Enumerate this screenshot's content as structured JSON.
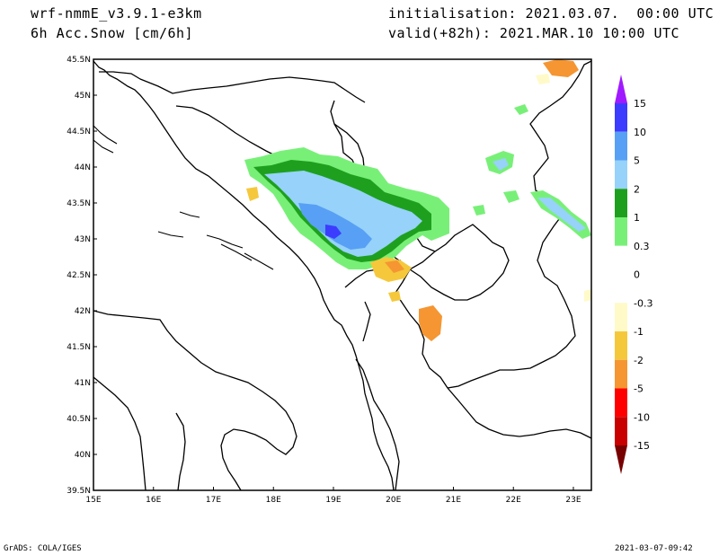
{
  "header": {
    "model": "wrf-nmmE_v3.9.1-e3km",
    "field": "6h Acc.Snow [cm/6h]",
    "init": "initialisation: 2021.03.07.  00:00 UTC",
    "valid": "valid(+82h): 2021.MAR.10 10:00 UTC"
  },
  "footer": {
    "left": "GrADS: COLA/IGES",
    "right": "2021-03-07-09:42"
  },
  "map": {
    "lon_labels": [
      "15E",
      "16E",
      "17E",
      "18E",
      "19E",
      "20E",
      "21E",
      "22E",
      "23E"
    ],
    "lat_labels": [
      "45.5N",
      "45N",
      "44.5N",
      "44N",
      "43.5N",
      "43N",
      "42.5N",
      "42N",
      "41.5N",
      "41N",
      "40.5N",
      "40N",
      "39.5N"
    ]
  },
  "colorbar": {
    "labels": [
      "15",
      "10",
      "5",
      "2",
      "1",
      "0.3",
      "0",
      "-0.3",
      "-1",
      "-2",
      "-5",
      "-10",
      "-15"
    ],
    "colors": [
      "#a01aff",
      "#3c3cff",
      "#58a0f5",
      "#96d2fa",
      "#1ea01e",
      "#78f078",
      "#ffffff",
      "#ffffff",
      "#fffac8",
      "#f5c83c",
      "#f59632",
      "#ff0000",
      "#c80000",
      "#780000"
    ]
  }
}
